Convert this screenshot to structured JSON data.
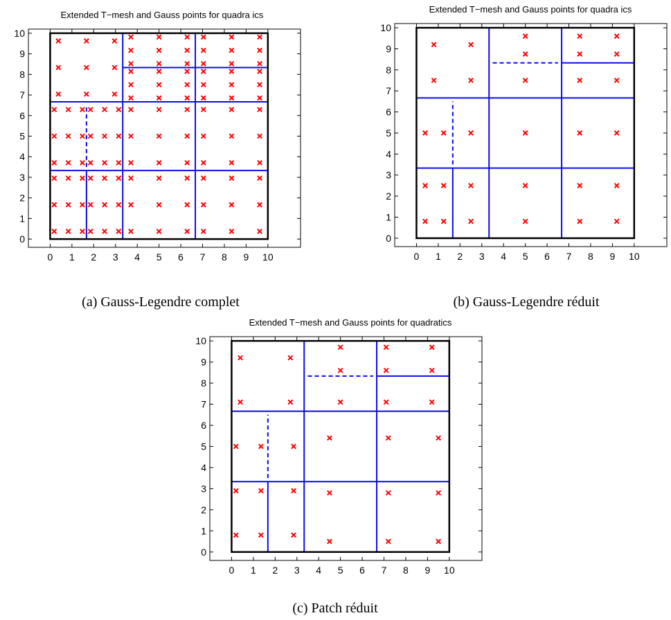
{
  "chart_data": [
    {
      "type": "scatter",
      "title": "Extended T−mesh and Gauss points for quadra ics",
      "caption": "(a) Gauss-Legendre complet",
      "xlim": [
        -1,
        11.5
      ],
      "ylim": [
        -0.4,
        10.2
      ],
      "xticks": [
        0,
        1,
        2,
        3,
        4,
        5,
        6,
        7,
        8,
        9,
        10
      ],
      "yticks": [
        0,
        1,
        2,
        3,
        4,
        5,
        6,
        7,
        8,
        9,
        10
      ],
      "mesh_color": "#0a0af0",
      "marker_color": "#ff0000",
      "solid_segments": [
        [
          [
            0,
            6.667
          ],
          [
            10,
            6.667
          ]
        ],
        [
          [
            0,
            3.333
          ],
          [
            10,
            3.333
          ]
        ],
        [
          [
            3.333,
            0
          ],
          [
            3.333,
            10
          ]
        ],
        [
          [
            6.667,
            0
          ],
          [
            6.667,
            10
          ]
        ],
        [
          [
            3.333,
            8.333
          ],
          [
            10,
            8.333
          ]
        ],
        [
          [
            1.667,
            0
          ],
          [
            1.667,
            3.333
          ]
        ]
      ],
      "dashed_segments": [
        [
          [
            3.5,
            8.333
          ],
          [
            6.5,
            8.333
          ]
        ],
        [
          [
            1.667,
            3.5
          ],
          [
            1.667,
            6.5
          ]
        ]
      ],
      "series": [
        {
          "name": "",
          "x": [
            0.375,
            1.667,
            2.958,
            0.375,
            1.667,
            2.958,
            0.375,
            1.667,
            2.958
          ],
          "y": [
            7.042,
            7.042,
            7.042,
            8.333,
            8.333,
            8.333,
            9.625,
            9.625,
            9.625
          ]
        },
        {
          "name": "",
          "x": [
            3.708,
            3.708,
            3.708,
            3.708,
            3.708,
            3.708,
            5.0,
            5.0,
            5.0,
            5.0,
            5.0,
            5.0,
            6.292,
            6.292,
            6.292,
            6.292,
            6.292,
            6.292
          ],
          "y": [
            6.854,
            7.5,
            8.146,
            8.521,
            9.167,
            9.812,
            6.854,
            7.5,
            8.146,
            8.521,
            9.167,
            9.812,
            6.854,
            7.5,
            8.146,
            8.521,
            9.167,
            9.812
          ]
        },
        {
          "name": "",
          "x": [
            7.042,
            7.042,
            7.042,
            7.042,
            7.042,
            7.042,
            8.333,
            8.333,
            8.333,
            8.333,
            8.333,
            8.333,
            9.625,
            9.625,
            9.625,
            9.625,
            9.625,
            9.625
          ],
          "y": [
            6.854,
            7.5,
            8.146,
            8.521,
            9.167,
            9.812,
            6.854,
            7.5,
            8.146,
            8.521,
            9.167,
            9.812,
            6.854,
            7.5,
            8.146,
            8.521,
            9.167,
            9.812
          ]
        },
        {
          "name": "",
          "x": [
            0.188,
            0.833,
            1.479,
            1.854,
            2.5,
            3.146,
            0.188,
            0.833,
            1.479,
            1.854,
            2.5,
            3.146,
            0.188,
            0.833,
            1.479,
            1.854,
            2.5,
            3.146
          ],
          "y": [
            3.708,
            3.708,
            3.708,
            3.708,
            3.708,
            3.708,
            5.0,
            5.0,
            5.0,
            5.0,
            5.0,
            5.0,
            6.292,
            6.292,
            6.292,
            6.292,
            6.292,
            6.292
          ]
        },
        {
          "name": "",
          "x": [
            3.708,
            5.0,
            6.292,
            3.708,
            5.0,
            6.292,
            3.708,
            5.0,
            6.292,
            7.042,
            8.333,
            9.625,
            7.042,
            8.333,
            9.625,
            7.042,
            8.333,
            9.625
          ],
          "y": [
            3.708,
            3.708,
            3.708,
            5.0,
            5.0,
            5.0,
            6.292,
            6.292,
            6.292,
            3.708,
            3.708,
            3.708,
            5.0,
            5.0,
            5.0,
            6.292,
            6.292,
            6.292
          ]
        },
        {
          "name": "",
          "x": [
            0.188,
            0.833,
            1.479,
            0.188,
            0.833,
            1.479,
            0.188,
            0.833,
            1.479,
            1.854,
            2.5,
            3.146,
            1.854,
            2.5,
            3.146,
            1.854,
            2.5,
            3.146
          ],
          "y": [
            0.375,
            0.375,
            0.375,
            1.667,
            1.667,
            1.667,
            2.958,
            2.958,
            2.958,
            0.375,
            0.375,
            0.375,
            1.667,
            1.667,
            1.667,
            2.958,
            2.958,
            2.958
          ]
        },
        {
          "name": "",
          "x": [
            3.708,
            5.0,
            6.292,
            3.708,
            5.0,
            6.292,
            3.708,
            5.0,
            6.292,
            7.042,
            8.333,
            9.625,
            7.042,
            8.333,
            9.625,
            7.042,
            8.333,
            9.625
          ],
          "y": [
            0.375,
            0.375,
            0.375,
            1.667,
            1.667,
            1.667,
            2.958,
            2.958,
            2.958,
            0.375,
            0.375,
            0.375,
            1.667,
            1.667,
            1.667,
            2.958,
            2.958,
            2.958
          ]
        }
      ]
    },
    {
      "type": "scatter",
      "title": "Extended T−mesh and Gauss points for quadra ics",
      "caption": "(b) Gauss-Legendre réduit",
      "xlim": [
        -1,
        11.5
      ],
      "ylim": [
        -0.4,
        10.2
      ],
      "xticks": [
        0,
        1,
        2,
        3,
        4,
        5,
        6,
        7,
        8,
        9,
        10
      ],
      "yticks": [
        0,
        1,
        2,
        3,
        4,
        5,
        6,
        7,
        8,
        9,
        10
      ],
      "mesh_color": "#0a0af0",
      "marker_color": "#ff0000",
      "solid_segments": [
        [
          [
            0,
            6.667
          ],
          [
            10,
            6.667
          ]
        ],
        [
          [
            0,
            3.333
          ],
          [
            10,
            3.333
          ]
        ],
        [
          [
            3.333,
            0
          ],
          [
            3.333,
            10
          ]
        ],
        [
          [
            6.667,
            0
          ],
          [
            6.667,
            10
          ]
        ],
        [
          [
            6.667,
            8.333
          ],
          [
            10,
            8.333
          ]
        ],
        [
          [
            1.667,
            0
          ],
          [
            1.667,
            3.333
          ]
        ]
      ],
      "dashed_segments": [
        [
          [
            3.5,
            8.333
          ],
          [
            6.5,
            8.333
          ]
        ],
        [
          [
            1.667,
            3.5
          ],
          [
            1.667,
            6.5
          ]
        ]
      ],
      "series": [
        {
          "name": "",
          "x": [
            0.8,
            2.5,
            0.8,
            2.5,
            5.0,
            5.0,
            5.0,
            7.5,
            9.2,
            7.5,
            9.2,
            7.5,
            9.2
          ],
          "y": [
            9.2,
            9.2,
            7.5,
            7.5,
            9.6,
            8.75,
            7.5,
            9.6,
            9.6,
            8.75,
            8.75,
            7.5,
            7.5
          ]
        },
        {
          "name": "",
          "x": [
            0.4,
            1.25,
            2.5,
            5.0,
            7.5,
            9.2
          ],
          "y": [
            5.0,
            5.0,
            5.0,
            5.0,
            5.0,
            5.0
          ]
        },
        {
          "name": "",
          "x": [
            0.4,
            1.25,
            2.5,
            5.0,
            7.5,
            9.2,
            0.4,
            1.25,
            2.5,
            5.0,
            7.5,
            9.2
          ],
          "y": [
            2.5,
            2.5,
            2.5,
            2.5,
            2.5,
            2.5,
            0.8,
            0.8,
            0.8,
            0.8,
            0.8,
            0.8
          ]
        }
      ]
    },
    {
      "type": "scatter",
      "title": "Extended T−mesh and Gauss points for quadratics",
      "caption": "(c) Patch réduit",
      "xlim": [
        -1,
        11.5
      ],
      "ylim": [
        -0.4,
        10.2
      ],
      "xticks": [
        0,
        1,
        2,
        3,
        4,
        5,
        6,
        7,
        8,
        9,
        10
      ],
      "yticks": [
        0,
        1,
        2,
        3,
        4,
        5,
        6,
        7,
        8,
        9,
        10
      ],
      "mesh_color": "#0a0af0",
      "marker_color": "#ff0000",
      "solid_segments": [
        [
          [
            0,
            6.667
          ],
          [
            10,
            6.667
          ]
        ],
        [
          [
            0,
            3.333
          ],
          [
            10,
            3.333
          ]
        ],
        [
          [
            3.333,
            0
          ],
          [
            3.333,
            10
          ]
        ],
        [
          [
            6.667,
            0
          ],
          [
            6.667,
            10
          ]
        ],
        [
          [
            6.667,
            8.333
          ],
          [
            10,
            8.333
          ]
        ],
        [
          [
            1.667,
            0
          ],
          [
            1.667,
            3.333
          ]
        ]
      ],
      "dashed_segments": [
        [
          [
            3.5,
            8.333
          ],
          [
            6.5,
            8.333
          ]
        ],
        [
          [
            1.667,
            3.5
          ],
          [
            1.667,
            6.5
          ]
        ]
      ],
      "series": [
        {
          "name": "",
          "x": [
            0.4,
            2.7,
            0.4,
            2.7,
            5.0,
            5.0,
            5.0,
            7.1,
            9.2,
            7.1,
            9.2,
            7.1,
            9.2
          ],
          "y": [
            9.2,
            9.2,
            7.1,
            7.1,
            9.7,
            8.6,
            7.1,
            9.7,
            9.7,
            8.6,
            8.6,
            7.1,
            7.1
          ]
        },
        {
          "name": "",
          "x": [
            0.2,
            1.35,
            2.85,
            4.5,
            7.2,
            9.5
          ],
          "y": [
            5.0,
            5.0,
            5.0,
            5.4,
            5.4,
            5.4
          ]
        },
        {
          "name": "",
          "x": [
            0.2,
            1.35,
            2.85,
            4.5,
            7.2,
            9.5,
            0.2,
            1.35,
            2.85,
            4.5,
            7.2,
            9.5
          ],
          "y": [
            2.9,
            2.9,
            2.9,
            2.8,
            2.8,
            2.8,
            0.8,
            0.8,
            0.8,
            0.5,
            0.5,
            0.5
          ]
        }
      ]
    }
  ]
}
